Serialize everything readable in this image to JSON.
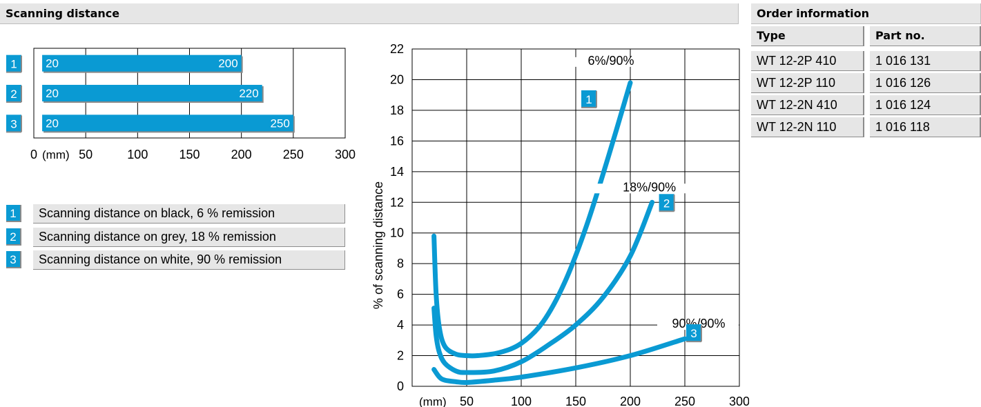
{
  "section_title": "Scanning distance",
  "order": {
    "title": "Order information",
    "columns": [
      "Type",
      "Part no."
    ],
    "rows": [
      [
        "WT 12-2P 410",
        "1 016 131"
      ],
      [
        "WT 12-2P 110",
        "1 016 126"
      ],
      [
        "WT 12-2N 410",
        "1 016 124"
      ],
      [
        "WT 12-2N 110",
        "1 016 118"
      ]
    ]
  },
  "legend": [
    {
      "num": "1",
      "text": "Scanning distance on black, 6 % remission"
    },
    {
      "num": "2",
      "text": "Scanning distance on grey, 18 % remission"
    },
    {
      "num": "3",
      "text": "Scanning distance on white, 90 % remission"
    }
  ],
  "colors": {
    "accent": "#0a9ad3",
    "header_bg": "#e6e6e6"
  },
  "chart_data": [
    {
      "type": "bar",
      "orientation": "horizontal",
      "categories": [
        "1",
        "2",
        "3"
      ],
      "series": [
        {
          "start": [
            20,
            20,
            20
          ],
          "values": [
            200,
            220,
            250
          ]
        }
      ],
      "start_labels": [
        "20",
        "20",
        "20"
      ],
      "end_labels": [
        "200",
        "220",
        "250"
      ],
      "xticks": [
        "0",
        "50",
        "100",
        "150",
        "200",
        "250",
        "300"
      ],
      "xunit": "(mm)",
      "xlim": [
        0,
        300
      ],
      "grid": true
    },
    {
      "type": "line",
      "xlabel": "(mm)",
      "ylabel": "% of scanning distance",
      "xlim": [
        0,
        300
      ],
      "ylim": [
        0,
        22
      ],
      "xticks": [
        "50",
        "100",
        "150",
        "200",
        "250",
        "300"
      ],
      "yticks": [
        "0",
        "2",
        "4",
        "6",
        "8",
        "10",
        "12",
        "14",
        "16",
        "18",
        "20",
        "22"
      ],
      "grid": true,
      "series": [
        {
          "label": "6%/90%",
          "badge": "1",
          "x": [
            20,
            22,
            25,
            30,
            40,
            50,
            60,
            80,
            100,
            120,
            140,
            160,
            180,
            200
          ],
          "y": [
            9.8,
            6.0,
            3.8,
            2.6,
            2.1,
            2.0,
            2.0,
            2.2,
            2.8,
            4.2,
            6.8,
            10.5,
            15.0,
            19.8
          ]
        },
        {
          "label": "18%/90%",
          "badge": "2",
          "x": [
            20,
            22,
            25,
            30,
            40,
            50,
            75,
            100,
            125,
            150,
            175,
            200,
            220
          ],
          "y": [
            5.1,
            3.3,
            2.2,
            1.5,
            1.0,
            0.9,
            1.0,
            1.6,
            2.7,
            4.0,
            5.8,
            8.5,
            12.0
          ]
        },
        {
          "label": "90%/90%",
          "badge": "3",
          "x": [
            20,
            25,
            30,
            40,
            50,
            75,
            100,
            150,
            200,
            250
          ],
          "y": [
            1.1,
            0.6,
            0.4,
            0.3,
            0.25,
            0.4,
            0.6,
            1.2,
            2.0,
            3.1
          ]
        }
      ]
    }
  ]
}
